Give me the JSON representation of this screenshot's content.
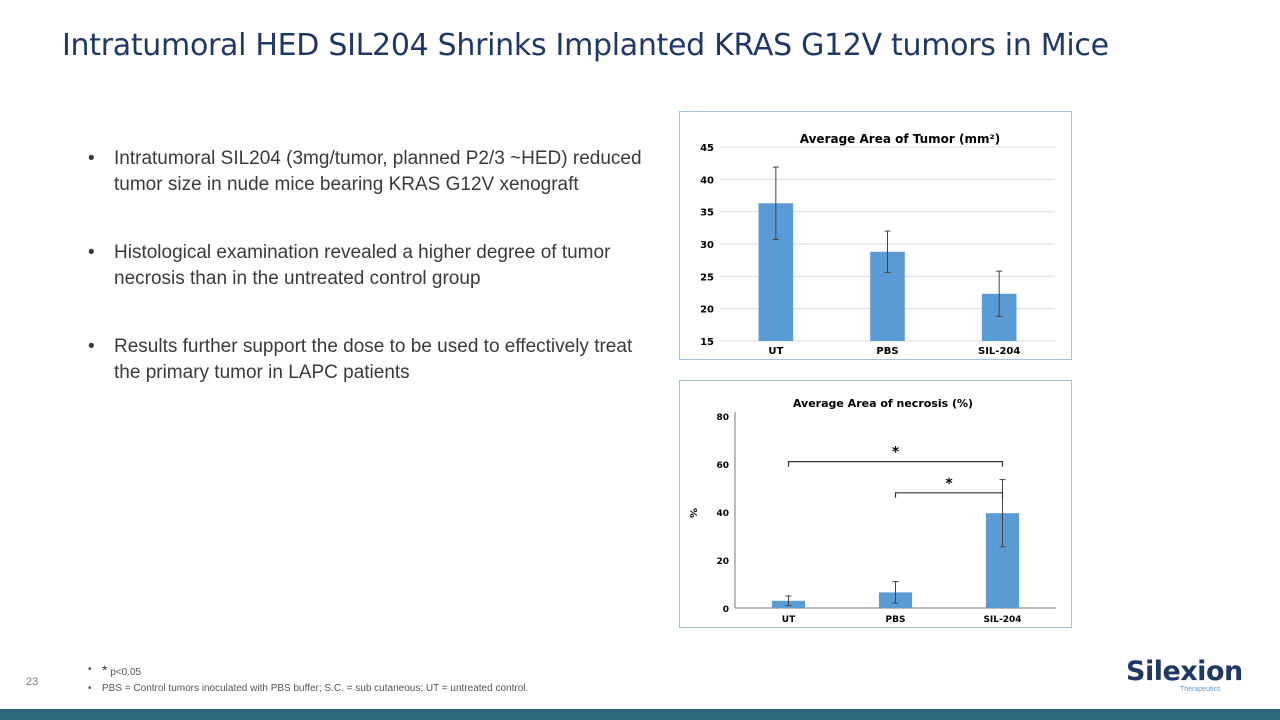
{
  "title": "Intratumoral HED  SIL204 Shrinks Implanted KRAS G12V tumors in Mice",
  "bullets": [
    "Intratumoral SIL204 (3mg/tumor, planned P2/3 ~HED) reduced tumor size in nude mice bearing KRAS G12V xenograft",
    "Histological examination revealed a higher degree of tumor necrosis than in the untreated control group",
    "Results further support the dose to be used to effectively treat the primary tumor in LAPC patients"
  ],
  "footnotes": {
    "star": "*",
    "p_value": "p<0.05",
    "definitions": "PBS = Control tumors inoculated with PBS buffer; S.C. = sub cutaneous; UT = untreated control."
  },
  "page_number": "23",
  "logo": {
    "name": "Silexion",
    "subtitle": "Therapeutics"
  },
  "colors": {
    "title": "#1f3864",
    "bar": "#5b9bd5",
    "footer_bar": "#2e6a7a",
    "chart_border": "#9dc3e6"
  },
  "chart_data": [
    {
      "type": "bar",
      "title": "Average Area of Tumor (mm²)",
      "categories": [
        "UT",
        "PBS",
        "SIL-204"
      ],
      "values": [
        36.3,
        28.8,
        22.3
      ],
      "error": [
        5.6,
        3.2,
        3.5
      ],
      "ylim": [
        15,
        45
      ],
      "yticks": [
        15,
        20,
        25,
        30,
        35,
        40,
        45
      ],
      "grid": true,
      "xlabel": "",
      "ylabel": ""
    },
    {
      "type": "bar",
      "title": "Average Area of necrosis (%)",
      "categories": [
        "UT",
        "PBS",
        "SIL-204"
      ],
      "values": [
        3,
        6.5,
        39.5
      ],
      "error": [
        2,
        4.5,
        14
      ],
      "ylim": [
        0,
        80
      ],
      "yticks": [
        0,
        20,
        40,
        60,
        80
      ],
      "grid": false,
      "xlabel": "",
      "ylabel": "%",
      "significance": [
        {
          "from": "UT",
          "to": "SIL-204",
          "level": 61,
          "label": "*"
        },
        {
          "from": "PBS",
          "to": "SIL-204",
          "level": 48,
          "label": "*"
        }
      ]
    }
  ]
}
